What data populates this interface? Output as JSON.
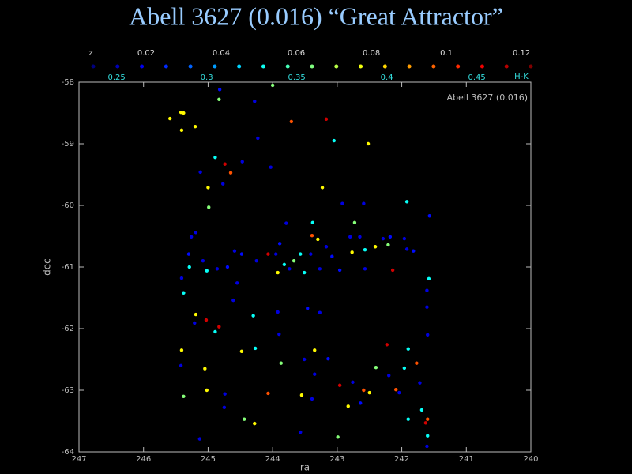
{
  "chart_data": {
    "type": "scatter",
    "title": "Abell 3627 (0.016) “Great Attractor”",
    "annotation": "Abell 3627 (0.016)",
    "xlabel": "ra",
    "ylabel": "dec",
    "xlim": [
      247,
      240
    ],
    "ylim": [
      -64,
      -58
    ],
    "xticks": [
      247,
      246,
      245,
      244,
      243,
      242,
      241,
      240
    ],
    "yticks": [
      -58,
      -59,
      -60,
      -61,
      -62,
      -63,
      -64
    ],
    "colormap": "jet",
    "colorbar": {
      "clim": [
        0.237,
        0.48
      ],
      "ticks": [
        0.25,
        0.3,
        0.35,
        0.4,
        0.45
      ],
      "label": "H-K",
      "zlim": [
        0.0059,
        0.1225
      ],
      "zticks": [
        0.02,
        0.04,
        0.06,
        0.08,
        0.1,
        0.12
      ],
      "zlabel": "z",
      "dots": 19
    },
    "x": [
      245.59,
      245.42,
      245.38,
      245.41,
      245.2,
      244.83,
      244.82,
      244.28,
      244.0,
      243.71,
      243.17,
      243.05,
      242.52,
      244.89,
      244.74,
      244.65,
      245.12,
      244.47,
      244.23,
      244.03,
      245.0,
      244.77,
      243.23,
      244.99,
      242.92,
      242.59,
      241.92,
      241.57,
      243.79,
      243.38,
      242.73,
      245.19,
      245.26,
      245.3,
      245.08,
      245.29,
      245.02,
      244.59,
      244.48,
      244.25,
      244.07,
      243.95,
      243.89,
      243.82,
      243.67,
      243.57,
      243.39,
      243.41,
      243.17,
      243.08,
      242.77,
      242.8,
      242.65,
      242.57,
      242.41,
      242.29,
      242.18,
      241.96,
      241.92,
      241.82,
      242.21,
      243.92,
      243.74,
      243.51,
      243.27,
      242.96,
      242.57,
      242.14,
      244.86,
      244.7,
      245.41,
      245.38,
      245.19,
      245.03,
      244.83,
      244.89,
      245.21,
      245.41,
      245.42,
      245.05,
      245.02,
      244.74,
      245.38,
      244.75,
      244.48,
      244.27,
      244.3,
      243.9,
      243.87,
      244.07,
      243.51,
      243.35,
      243.35,
      243.55,
      243.39,
      243.14,
      242.96,
      242.83,
      242.59,
      242.4,
      242.23,
      242.2,
      242.04,
      242.09,
      241.96,
      241.9,
      241.77,
      241.63,
      241.6,
      241.6,
      241.61,
      241.69,
      241.9,
      244.44,
      244.28,
      245.13,
      242.99,
      243.57,
      242.76,
      242.64,
      242.5,
      241.72,
      241.6,
      241.61,
      241.58,
      241.61,
      243.27,
      243.92,
      243.46,
      244.55,
      244.61,
      243.3
    ],
    "y": [
      -58.59,
      -58.49,
      -58.5,
      -58.78,
      -58.72,
      -58.28,
      -58.12,
      -58.31,
      -58.05,
      -58.64,
      -58.6,
      -58.95,
      -59.0,
      -59.22,
      -59.33,
      -59.47,
      -59.46,
      -59.29,
      -58.91,
      -59.38,
      -59.71,
      -59.65,
      -59.71,
      -60.03,
      -59.97,
      -59.97,
      -59.94,
      -60.17,
      -60.29,
      -60.28,
      -60.28,
      -60.44,
      -60.51,
      -60.79,
      -60.9,
      -61.0,
      -61.06,
      -60.74,
      -60.79,
      -60.9,
      -60.79,
      -60.79,
      -60.62,
      -60.96,
      -60.9,
      -60.79,
      -60.49,
      -60.79,
      -60.67,
      -60.83,
      -60.76,
      -60.51,
      -60.51,
      -60.72,
      -60.67,
      -60.54,
      -60.51,
      -60.54,
      -60.71,
      -60.74,
      -60.64,
      -61.09,
      -61.03,
      -61.09,
      -61.03,
      -61.05,
      -61.03,
      -61.05,
      -61.03,
      -61.0,
      -61.18,
      -61.42,
      -61.77,
      -61.86,
      -61.97,
      -62.05,
      -61.91,
      -62.35,
      -62.6,
      -62.65,
      -63.0,
      -63.06,
      -63.1,
      -63.28,
      -62.37,
      -62.32,
      -61.79,
      -62.09,
      -62.56,
      -63.05,
      -62.5,
      -62.35,
      -62.74,
      -63.08,
      -63.14,
      -62.49,
      -62.92,
      -63.26,
      -63.0,
      -62.63,
      -62.26,
      -62.76,
      -63.04,
      -62.99,
      -62.64,
      -62.33,
      -62.56,
      -63.53,
      -63.47,
      -63.74,
      -63.91,
      -63.32,
      -63.47,
      -63.47,
      -63.54,
      -63.79,
      -63.76,
      -63.68,
      -62.87,
      -63.21,
      -63.04,
      -62.88,
      -62.1,
      -61.65,
      -61.19,
      -61.38,
      -61.74,
      -61.73,
      -61.67,
      -61.26,
      -61.54,
      -60.55
    ],
    "c": [
      0.39,
      0.39,
      0.39,
      0.39,
      0.39,
      0.36,
      0.27,
      0.26,
      0.36,
      0.43,
      0.46,
      0.33,
      0.39,
      0.33,
      0.46,
      0.43,
      0.26,
      0.26,
      0.26,
      0.26,
      0.39,
      0.26,
      0.39,
      0.36,
      0.26,
      0.26,
      0.33,
      0.27,
      0.26,
      0.33,
      0.36,
      0.26,
      0.26,
      0.27,
      0.26,
      0.33,
      0.33,
      0.26,
      0.27,
      0.26,
      0.46,
      0.26,
      0.27,
      0.33,
      0.36,
      0.33,
      0.43,
      0.26,
      0.26,
      0.27,
      0.39,
      0.26,
      0.26,
      0.33,
      0.39,
      0.26,
      0.27,
      0.26,
      0.26,
      0.27,
      0.36,
      0.39,
      0.26,
      0.33,
      0.26,
      0.27,
      0.26,
      0.46,
      0.26,
      0.27,
      0.26,
      0.33,
      0.39,
      0.46,
      0.46,
      0.33,
      0.26,
      0.39,
      0.26,
      0.39,
      0.39,
      0.26,
      0.36,
      0.26,
      0.39,
      0.33,
      0.33,
      0.26,
      0.36,
      0.43,
      0.26,
      0.39,
      0.26,
      0.39,
      0.26,
      0.27,
      0.46,
      0.39,
      0.43,
      0.36,
      0.46,
      0.26,
      0.26,
      0.43,
      0.33,
      0.33,
      0.43,
      0.46,
      0.43,
      0.33,
      0.26,
      0.33,
      0.33,
      0.36,
      0.39,
      0.26,
      0.36,
      0.26,
      0.26,
      0.27,
      0.39,
      0.26,
      0.26,
      0.26,
      0.33,
      0.26,
      0.26,
      0.26,
      0.27,
      0.26,
      0.26,
      0.39
    ]
  }
}
